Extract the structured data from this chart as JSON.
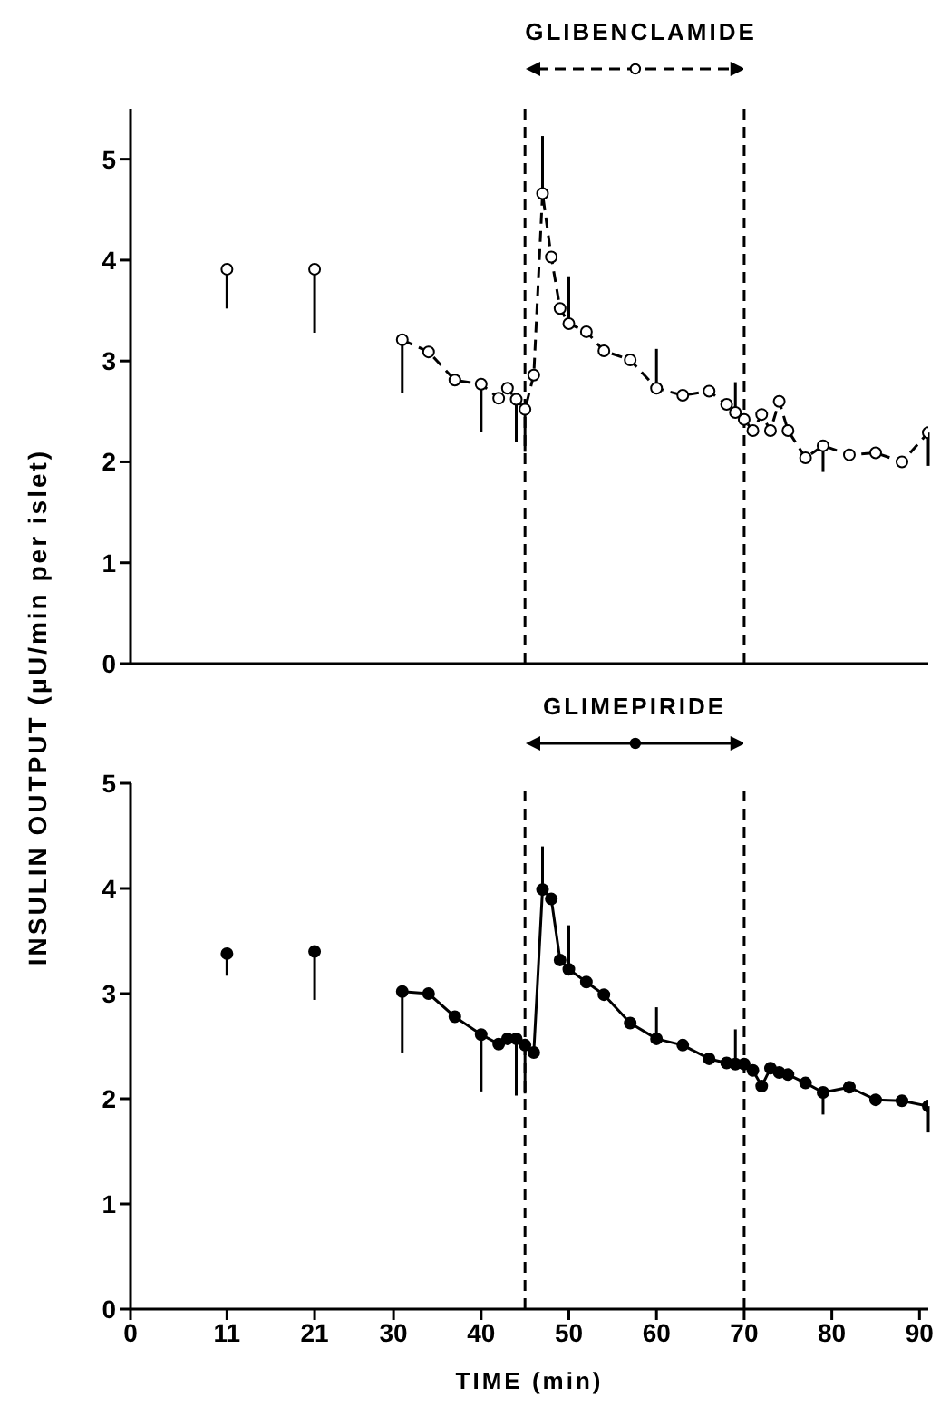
{
  "chart_data": [
    {
      "type": "line",
      "ylabel": "INSULIN OUTPUT (μU/min per islet)",
      "xlim": [
        0,
        91
      ],
      "xticks": [
        0,
        11,
        21,
        30,
        40,
        50,
        60,
        70,
        80,
        90
      ],
      "ylim": [
        0,
        5.5
      ],
      "yticks": [
        0,
        1,
        2,
        3,
        4,
        5
      ],
      "tick_labels": "y",
      "marker": "circle",
      "line_style": "dashed",
      "legend": "top",
      "ref_lines": [
        {
          "axis": "x",
          "value": 45,
          "line_style": "dashed"
        },
        {
          "axis": "x",
          "value": 70,
          "line_style": "dashed"
        }
      ],
      "series": [
        {
          "type": "scatter",
          "color": "#000000",
          "x": [
            11,
            21
          ],
          "values": [
            3.91,
            3.91
          ],
          "errors": [
            [
              3.52,
              3.91
            ],
            [
              3.28,
              3.91
            ]
          ]
        },
        {
          "name": "GLIBENCLAMIDE",
          "color": "#000000",
          "x": [
            31,
            34,
            37,
            40,
            42,
            43,
            44,
            45,
            46,
            47,
            48,
            49,
            50,
            52,
            54,
            57,
            60,
            63,
            66,
            68,
            69,
            70,
            71,
            72,
            73,
            74,
            75,
            77,
            79,
            82,
            85,
            88,
            91
          ],
          "values": [
            3.21,
            3.09,
            2.81,
            2.77,
            2.63,
            2.73,
            2.62,
            2.52,
            2.86,
            4.66,
            4.03,
            3.52,
            3.37,
            3.29,
            3.1,
            3.01,
            2.73,
            2.66,
            2.7,
            2.57,
            2.49,
            2.42,
            2.31,
            2.47,
            2.31,
            2.6,
            2.31,
            2.04,
            2.16,
            2.07,
            2.09,
            2.0,
            2.29
          ],
          "errors": [
            [
              2.68,
              3.21
            ],
            null,
            null,
            [
              2.3,
              2.77
            ],
            null,
            null,
            [
              2.2,
              2.62
            ],
            [
              2.1,
              2.52
            ],
            null,
            [
              4.66,
              5.23
            ],
            null,
            null,
            [
              3.37,
              3.84
            ],
            null,
            null,
            null,
            [
              2.73,
              3.12
            ],
            null,
            null,
            null,
            [
              2.49,
              2.79
            ],
            null,
            null,
            null,
            null,
            null,
            null,
            null,
            [
              1.9,
              2.16
            ],
            null,
            null,
            null,
            [
              1.96,
              2.29
            ]
          ]
        }
      ]
    },
    {
      "type": "line",
      "xlabel": "TIME (min)",
      "xlim": [
        0,
        91
      ],
      "xticks": [
        0,
        11,
        21,
        30,
        40,
        50,
        60,
        70,
        80,
        90
      ],
      "ylim": [
        0,
        5
      ],
      "yticks": [
        0,
        1,
        2,
        3,
        4,
        5
      ],
      "marker": "circle",
      "line_style": "solid",
      "legend": "top",
      "ref_lines": [
        {
          "axis": "x",
          "value": 45,
          "line_style": "dashed"
        },
        {
          "axis": "x",
          "value": 70,
          "line_style": "dashed"
        }
      ],
      "series": [
        {
          "type": "scatter",
          "color": "#000000",
          "x": [
            11,
            21
          ],
          "values": [
            3.38,
            3.4
          ],
          "errors": [
            [
              3.17,
              3.38
            ],
            [
              2.94,
              3.4
            ]
          ]
        },
        {
          "name": "GLIMEPIRIDE",
          "color": "#000000",
          "x": [
            31,
            34,
            37,
            40,
            42,
            43,
            44,
            45,
            46,
            47,
            48,
            49,
            50,
            52,
            54,
            57,
            60,
            63,
            66,
            68,
            69,
            70,
            71,
            72,
            73,
            74,
            75,
            77,
            79,
            82,
            85,
            88,
            91
          ],
          "values": [
            3.02,
            3.0,
            2.78,
            2.61,
            2.52,
            2.57,
            2.57,
            2.51,
            2.44,
            3.99,
            3.9,
            3.32,
            3.23,
            3.11,
            2.99,
            2.72,
            2.57,
            2.51,
            2.38,
            2.34,
            2.33,
            2.33,
            2.27,
            2.12,
            2.29,
            2.25,
            2.23,
            2.15,
            2.06,
            2.11,
            1.99,
            1.98,
            1.93
          ],
          "errors": [
            [
              2.44,
              3.02
            ],
            null,
            null,
            [
              2.07,
              2.61
            ],
            null,
            null,
            [
              2.03,
              2.57
            ],
            [
              2.05,
              2.51
            ],
            null,
            [
              3.99,
              4.4
            ],
            null,
            null,
            [
              3.23,
              3.65
            ],
            null,
            null,
            null,
            [
              2.57,
              2.87
            ],
            null,
            null,
            null,
            [
              2.33,
              2.66
            ],
            null,
            null,
            null,
            null,
            null,
            null,
            null,
            [
              1.85,
              2.06
            ],
            null,
            null,
            null,
            [
              1.68,
              1.93
            ]
          ]
        }
      ]
    }
  ]
}
